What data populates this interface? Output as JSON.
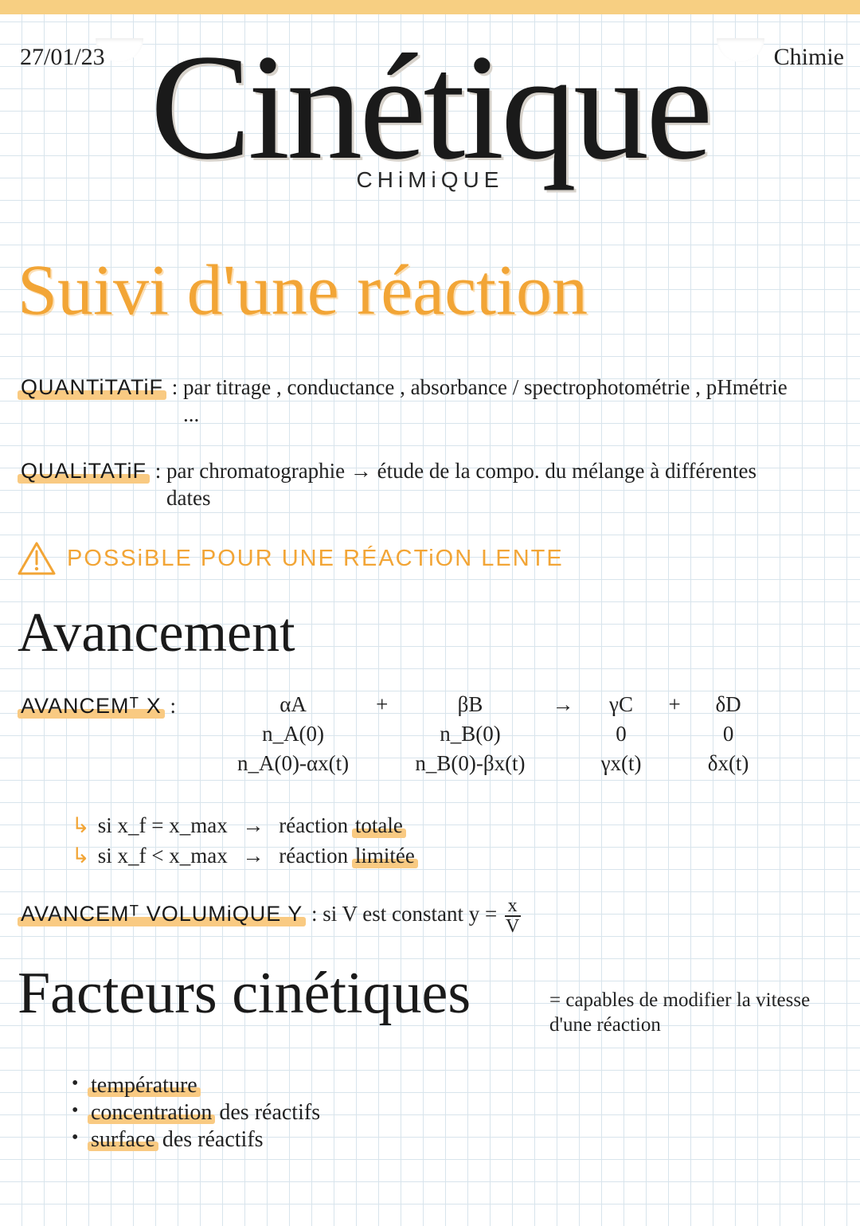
{
  "colors": {
    "orange": "#f2a536",
    "orange_hl": "#f9ca82",
    "top_band": "#f7cf82",
    "ink": "#1a1a1a",
    "grid": "#d8e4ec"
  },
  "header": {
    "date": "27/01/23",
    "subject": "Chimie"
  },
  "title": {
    "main": "Cinétique",
    "sub": "CHiMiQUE"
  },
  "section1": {
    "heading": "Suivi d'une réaction",
    "heading_fontsize": 90,
    "quantitatif_label": "QUANTiTATiF",
    "quantitatif_text": "par titrage , conductance , absorbance / spectrophotométrie , pHmétrie ...",
    "qualitatif_label": "QUALiTATiF",
    "qualitatif_text": "par chromatographie → étude de la compo. du mélange à différentes dates",
    "warning": "POSSiBLE POUR UNE RÉACTiON LENTE"
  },
  "section2": {
    "heading": "Avancement",
    "avancement_x_label": "AVANCEMᵀ X",
    "reaction": {
      "row1": [
        "αA",
        "+",
        "βB",
        "→",
        "γC",
        "+",
        "δD"
      ],
      "row2": [
        "n_A(0)",
        "",
        "n_B(0)",
        "",
        "0",
        "",
        "0"
      ],
      "row3": [
        "n_A(0)-αx(t)",
        "",
        "n_B(0)-βx(t)",
        "",
        "γx(t)",
        "",
        "δx(t)"
      ]
    },
    "cond1_lhs": "si  x_f = x_max",
    "cond1_rhs": "réaction",
    "cond1_hl": "totale",
    "cond2_lhs": "si  x_f < x_max",
    "cond2_rhs": "réaction",
    "cond2_hl": "limitée",
    "avancement_y_label": "AVANCEMᵀ VOLUMiQUE Y",
    "avancement_y_text": "si V est constant  y =",
    "frac_num": "x",
    "frac_den": "V"
  },
  "section3": {
    "heading": "Facteurs cinétiques",
    "heading_sub": "= capables de modifier la vitesse d'une réaction",
    "bullets": [
      {
        "hl": "température",
        "rest": ""
      },
      {
        "hl": "concentration",
        "rest": " des réactifs"
      },
      {
        "hl": "surface",
        "rest": " des réactifs"
      }
    ]
  }
}
